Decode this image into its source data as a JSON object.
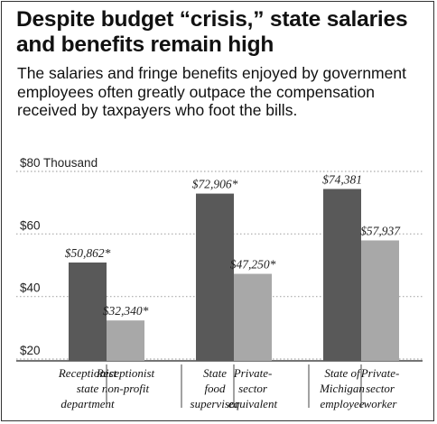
{
  "title": "Despite budget “crisis,” state salaries and benefits remain high",
  "subtitle": "The salaries and fringe benefits enjoyed by government employees often greatly outpace the compensation received by taxpayers who foot the bills.",
  "colors": {
    "dark_bar": "#595959",
    "light_bar": "#a8a8a8",
    "grid": "#aaaaaa"
  },
  "chart_data": {
    "type": "bar",
    "ylim": [
      20,
      80
    ],
    "yticks": [
      {
        "value": 80,
        "label": "$80 Thousand"
      },
      {
        "value": 60,
        "label": "$60"
      },
      {
        "value": 40,
        "label": "$40"
      },
      {
        "value": 20,
        "label": "$20"
      }
    ],
    "grid": true,
    "groups": [
      {
        "bars": [
          {
            "category": [
              "Receptionist",
              "state",
              "department"
            ],
            "value": 50.862,
            "label": "$50,862*",
            "shade": "dark"
          },
          {
            "category": [
              "Receptionist",
              "non-profit"
            ],
            "value": 32.34,
            "label": "$32,340*",
            "shade": "light"
          }
        ]
      },
      {
        "bars": [
          {
            "category": [
              "State",
              "food",
              "supervisor"
            ],
            "value": 72.906,
            "label": "$72,906*",
            "shade": "dark"
          },
          {
            "category": [
              "Private-",
              "sector",
              "equivalent"
            ],
            "value": 47.25,
            "label": "$47,250*",
            "shade": "light"
          }
        ]
      },
      {
        "bars": [
          {
            "category": [
              "State of",
              "Michigan",
              "employee"
            ],
            "value": 74.381,
            "label": "$74,381",
            "shade": "dark"
          },
          {
            "category": [
              "Private-",
              "sector",
              "worker"
            ],
            "value": 57.937,
            "label": "$57,937",
            "shade": "light"
          }
        ]
      }
    ]
  }
}
